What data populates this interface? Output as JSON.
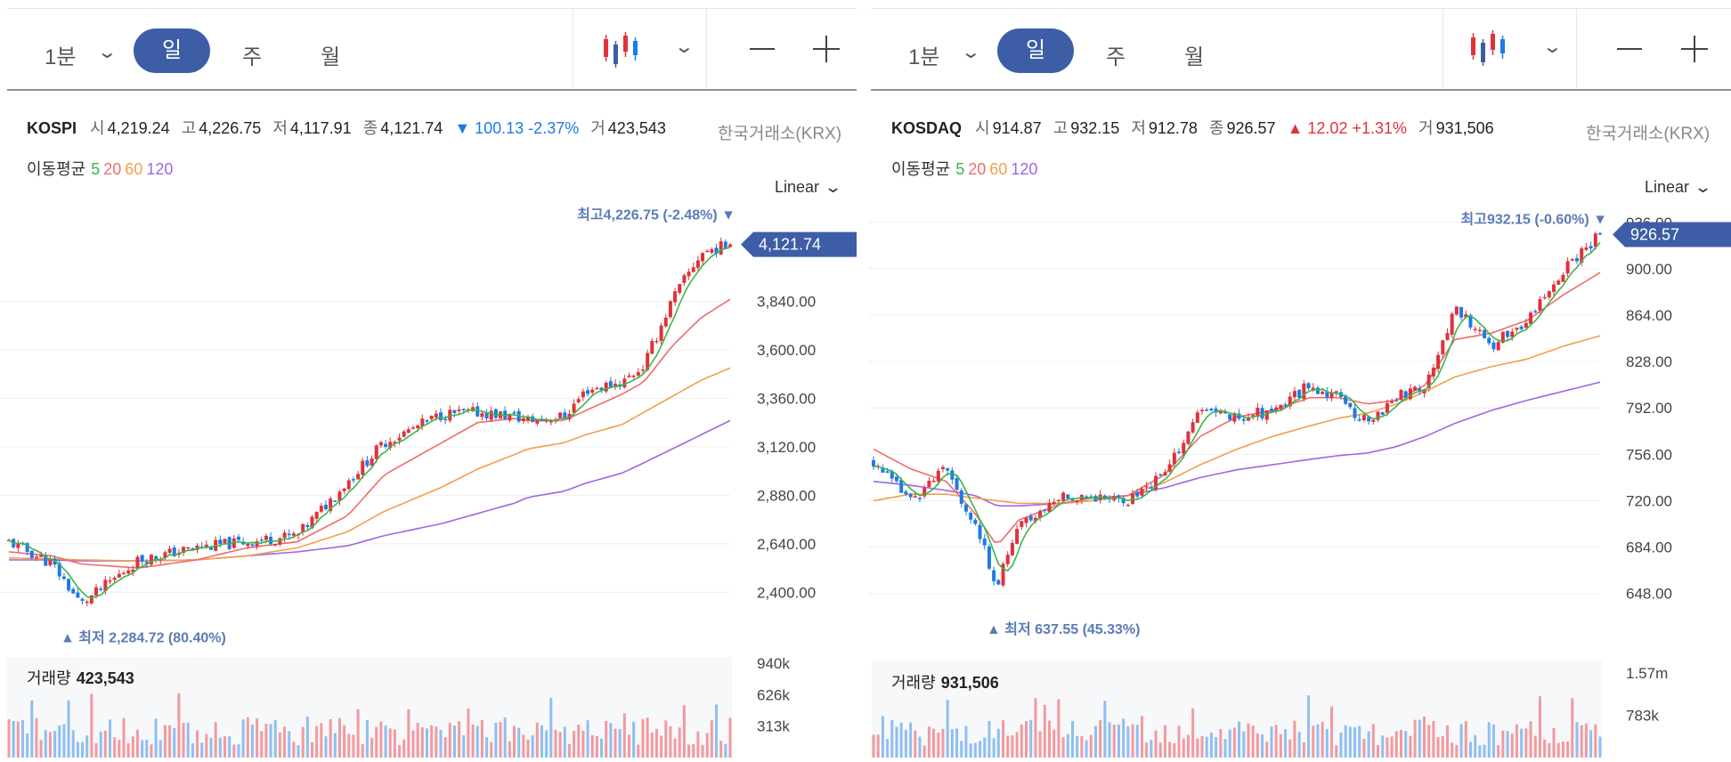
{
  "panels": [
    {
      "toolbar": {
        "interval": "1분",
        "day": "일",
        "week": "주",
        "month": "월"
      },
      "info": {
        "name": "KOSPI",
        "open_label": "시",
        "open": "4,219.24",
        "high_label": "고",
        "high": "4,226.75",
        "low_label": "저",
        "low": "4,117.91",
        "close_label": "종",
        "close": "4,121.74",
        "change": "▼ 100.13 -2.37%",
        "direction": "down",
        "volume_label": "거",
        "volume": "423,543",
        "source": "한국거래소(KRX)"
      },
      "ma_legend": {
        "label": "이동평균",
        "periods": [
          "5",
          "20",
          "60",
          "120"
        ]
      },
      "scale_label": "Linear",
      "price_tag": "4,121.74",
      "high_annotation": {
        "label": "최고",
        "value": "4,226.75 (-2.48%)"
      },
      "low_annotation": {
        "label": "최저",
        "value": "2,284.72 (80.40%)"
      },
      "volume_title": "거래량",
      "volume_value": "423,543",
      "volume_ticks": [
        "940k",
        "626k",
        "313k"
      ]
    },
    {
      "toolbar": {
        "interval": "1분",
        "day": "일",
        "week": "주",
        "month": "월"
      },
      "info": {
        "name": "KOSDAQ",
        "open_label": "시",
        "open": "914.87",
        "high_label": "고",
        "high": "932.15",
        "low_label": "저",
        "low": "912.78",
        "close_label": "종",
        "close": "926.57",
        "change": "▲ 12.02 +1.31%",
        "direction": "up",
        "volume_label": "거",
        "volume": "931,506",
        "source": "한국거래소(KRX)"
      },
      "ma_legend": {
        "label": "이동평균",
        "periods": [
          "5",
          "20",
          "60",
          "120"
        ]
      },
      "scale_label": "Linear",
      "price_tag": "926.57",
      "high_annotation": {
        "label": "최고",
        "value": "932.15 (-0.60%)"
      },
      "low_annotation": {
        "label": "최저",
        "value": "637.55 (45.33%)"
      },
      "volume_title": "거래량",
      "volume_value": "931,506",
      "volume_ticks": [
        "1.57m",
        "783k"
      ]
    }
  ],
  "colors": {
    "up": "#e0323c",
    "down": "#1e7ae6",
    "ma5": "#3cb44b",
    "ma20": "#f06a6a",
    "ma60": "#f0a04b",
    "ma120": "#a066e0",
    "accent": "#3d5ea6",
    "annotation": "#5b7bb5"
  },
  "chart_data": [
    {
      "type": "candlestick",
      "title": "KOSPI",
      "ylim": [
        2300,
        4230
      ],
      "yticks": [
        2400,
        2640,
        2880,
        3120,
        3360,
        3600,
        3840
      ],
      "ytick_labels": [
        "2,400.00",
        "2,640.00",
        "2,880.00",
        "3,120.00",
        "3,360.00",
        "3,600.00",
        "3,840.00"
      ],
      "last_close": 4121.74,
      "max": 4226.75,
      "min": 2284.72,
      "close_path_x": [
        0,
        0.06,
        0.1,
        0.18,
        0.26,
        0.33,
        0.4,
        0.47,
        0.52,
        0.6,
        0.65,
        0.7,
        0.72,
        0.77,
        0.8,
        0.85,
        0.88,
        0.92,
        0.96,
        1.0
      ],
      "close_path_y": [
        2650,
        2540,
        2340,
        2560,
        2620,
        2650,
        2680,
        2950,
        3140,
        3280,
        3290,
        3270,
        3250,
        3270,
        3400,
        3440,
        3520,
        3850,
        4080,
        4121.74
      ],
      "ma20_path_y": [
        2600,
        2580,
        2540,
        2520,
        2560,
        2620,
        2650,
        2780,
        2980,
        3140,
        3240,
        3260,
        3250,
        3250,
        3300,
        3380,
        3440,
        3620,
        3760,
        3850
      ],
      "ma60_path_y": [
        2570,
        2565,
        2560,
        2555,
        2560,
        2580,
        2620,
        2700,
        2800,
        2920,
        3010,
        3080,
        3110,
        3140,
        3180,
        3230,
        3290,
        3370,
        3450,
        3510
      ],
      "ma120_path_y": [
        2560,
        2560,
        2555,
        2555,
        2560,
        2580,
        2600,
        2630,
        2680,
        2740,
        2790,
        2840,
        2870,
        2900,
        2940,
        2990,
        3040,
        3110,
        3180,
        3250
      ],
      "volume_ylim": [
        0,
        1000
      ],
      "volume_ticks": [
        940,
        626,
        313
      ]
    },
    {
      "type": "candlestick",
      "title": "KOSDAQ",
      "ylim": [
        625,
        940
      ],
      "yticks": [
        648,
        684,
        720,
        756,
        792,
        828,
        864,
        900,
        936
      ],
      "ytick_labels": [
        "648.00",
        "684.00",
        "720.00",
        "756.00",
        "792.00",
        "828.00",
        "864.00",
        "900.00",
        "936.00"
      ],
      "last_close": 926.57,
      "max": 932.15,
      "min": 637.55,
      "close_path_x": [
        0,
        0.05,
        0.1,
        0.14,
        0.17,
        0.2,
        0.26,
        0.3,
        0.35,
        0.4,
        0.45,
        0.5,
        0.55,
        0.6,
        0.64,
        0.68,
        0.72,
        0.76,
        0.8,
        0.85,
        0.9,
        0.95,
        1.0
      ],
      "close_path_y": [
        750,
        720,
        745,
        700,
        655,
        700,
        724,
        724,
        720,
        740,
        790,
        785,
        790,
        810,
        800,
        780,
        800,
        810,
        870,
        840,
        860,
        900,
        926.57
      ],
      "ma20_path_y": [
        760,
        745,
        735,
        710,
        685,
        705,
        718,
        722,
        724,
        740,
        770,
        785,
        790,
        800,
        800,
        795,
        798,
        810,
        845,
        850,
        860,
        880,
        897
      ],
      "ma60_path_y": [
        720,
        725,
        725,
        722,
        720,
        718,
        718,
        720,
        724,
        734,
        748,
        760,
        770,
        778,
        784,
        788,
        795,
        805,
        816,
        824,
        830,
        840,
        848
      ],
      "ma120_path_y": [
        735,
        732,
        728,
        724,
        716,
        716,
        718,
        720,
        724,
        730,
        738,
        744,
        748,
        752,
        755,
        757,
        762,
        770,
        780,
        790,
        798,
        805,
        812
      ],
      "volume_ylim": [
        0,
        1800
      ],
      "volume_ticks": [
        1570,
        783
      ]
    }
  ]
}
